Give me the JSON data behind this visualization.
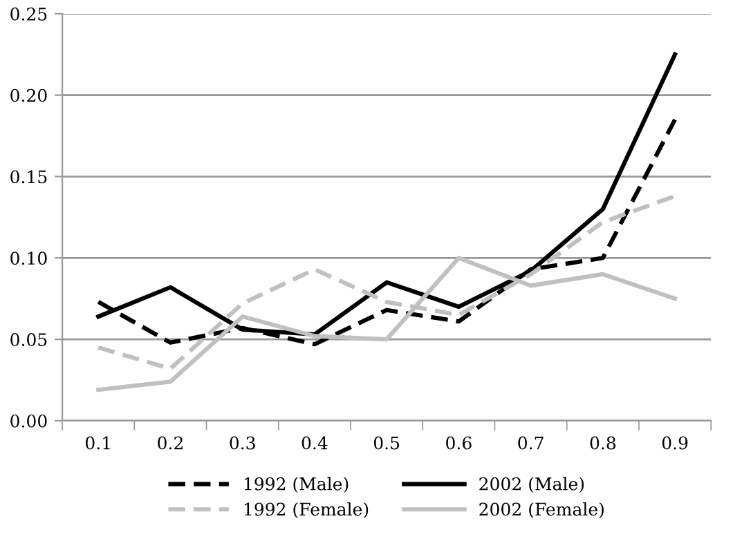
{
  "chart_data": {
    "type": "line",
    "categories": [
      "0.1",
      "0.2",
      "0.3",
      "0.4",
      "0.5",
      "0.6",
      "0.7",
      "0.8",
      "0.9"
    ],
    "series": [
      {
        "name": "1992 (Male)",
        "color": "#000000",
        "line_style": "dashed",
        "values": [
          0.073,
          0.048,
          0.057,
          0.047,
          0.068,
          0.061,
          0.093,
          0.1,
          0.185
        ]
      },
      {
        "name": "2002 (Male)",
        "color": "#000000",
        "line_style": "solid",
        "values": [
          0.064,
          0.082,
          0.056,
          0.053,
          0.085,
          0.07,
          0.092,
          0.13,
          0.225
        ]
      },
      {
        "name": "1992 (Female)",
        "color": "#c0c0c0",
        "line_style": "dashed",
        "values": [
          0.045,
          0.032,
          0.072,
          0.093,
          0.073,
          0.065,
          0.09,
          0.122,
          0.138
        ]
      },
      {
        "name": "2002 (Female)",
        "color": "#c0c0c0",
        "line_style": "solid",
        "values": [
          0.019,
          0.024,
          0.064,
          0.052,
          0.05,
          0.1,
          0.083,
          0.09,
          0.075
        ]
      }
    ],
    "ylim": [
      0,
      0.25
    ],
    "yticks": [
      {
        "value": 0,
        "label": "0.00"
      },
      {
        "value": 0.05,
        "label": "0.05"
      },
      {
        "value": 0.1,
        "label": "0.10"
      },
      {
        "value": 0.15,
        "label": "0.15"
      },
      {
        "value": 0.2,
        "label": "0.20"
      },
      {
        "value": 0.25,
        "label": "0.25"
      }
    ],
    "grid": "y",
    "legend": "bottom",
    "marker": "none"
  }
}
